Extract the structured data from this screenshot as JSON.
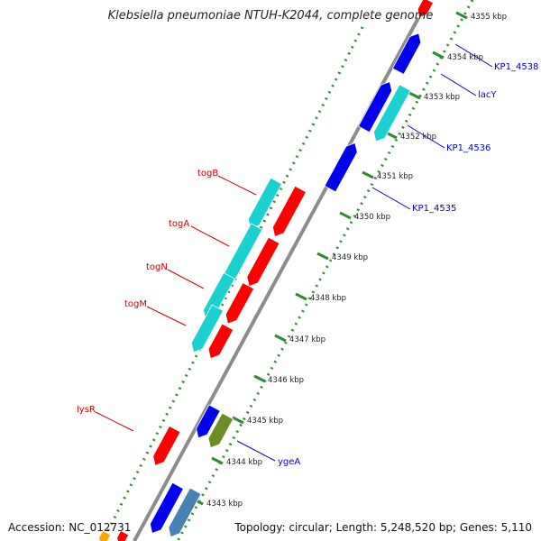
{
  "title": "Klebsiella pneumoniae NTUH-K2044, complete genome",
  "accession_label": "Accession: NC_012731",
  "topology_label": "Topology: circular; Length: 5,248,520 bp; Genes: 5,110",
  "tick_labels": [
    "4343 kbp",
    "4344 kbp",
    "4345 kbp",
    "4346 kbp",
    "4347 kbp",
    "4348 kbp",
    "4349 kbp",
    "4350 kbp",
    "4351 kbp",
    "4352 kbp",
    "4353 kbp",
    "4354 kbp",
    "4355 kbp"
  ],
  "gene_labels_left": [
    "togB",
    "togA",
    "togN",
    "togM",
    "lysR"
  ],
  "gene_labels_right": [
    "KP1_4538",
    "lacY",
    "KP1_4536",
    "KP1_4535",
    "ygeA"
  ],
  "colors": {
    "backbone": "#8c8c8c",
    "dots": "#2e8b2e",
    "red": "#ff0000",
    "blue": "#0000ee",
    "cyan": "#1ad0d0",
    "olive": "#6b8e23",
    "steel": "#4682b4",
    "orange": "#ffa500",
    "left_label": "#cc0000",
    "right_label": "#0000cc"
  }
}
